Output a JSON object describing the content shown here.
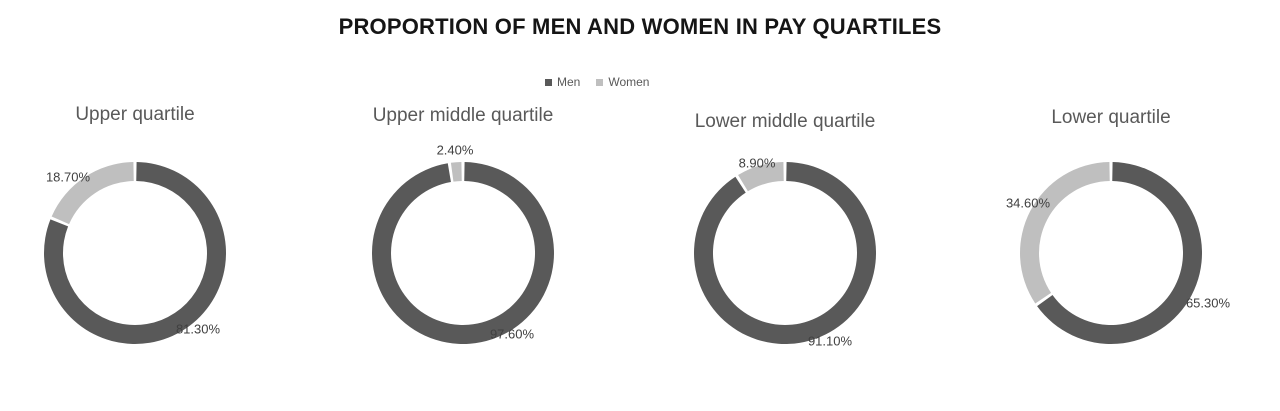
{
  "header": {
    "title": "PROPORTION OF MEN AND WOMEN IN PAY QUARTILES"
  },
  "legend": {
    "items": [
      {
        "label": "Men",
        "color": "#595959"
      },
      {
        "label": "Women",
        "color": "#bfbfbf"
      }
    ]
  },
  "chart_data": {
    "type": "pie",
    "subtype": "donut",
    "title": "PROPORTION OF MEN AND WOMEN IN PAY QUARTILES",
    "legend_position": "top",
    "series_names": [
      "Men",
      "Women"
    ],
    "colors": {
      "men": "#595959",
      "women": "#bfbfbf"
    },
    "hole_ratio": 0.79,
    "start_angle_deg": 0,
    "direction": "clockwise",
    "charts": [
      {
        "title": "Upper quartile",
        "slices": [
          {
            "name": "Men",
            "value": 81.3,
            "label": "81.30%"
          },
          {
            "name": "Women",
            "value": 18.7,
            "label": "18.70%"
          }
        ]
      },
      {
        "title": "Upper middle quartile",
        "slices": [
          {
            "name": "Men",
            "value": 97.6,
            "label": "97.60%"
          },
          {
            "name": "Women",
            "value": 2.4,
            "label": "2.40%"
          }
        ]
      },
      {
        "title": "Lower middle quartile",
        "slices": [
          {
            "name": "Men",
            "value": 91.1,
            "label": "91.10%"
          },
          {
            "name": "Women",
            "value": 8.9,
            "label": "8.90%"
          }
        ]
      },
      {
        "title": "Lower quartile",
        "slices": [
          {
            "name": "Men",
            "value": 65.3,
            "label": "65.30%"
          },
          {
            "name": "Women",
            "value": 34.6,
            "label": "34.60%"
          }
        ]
      }
    ]
  }
}
